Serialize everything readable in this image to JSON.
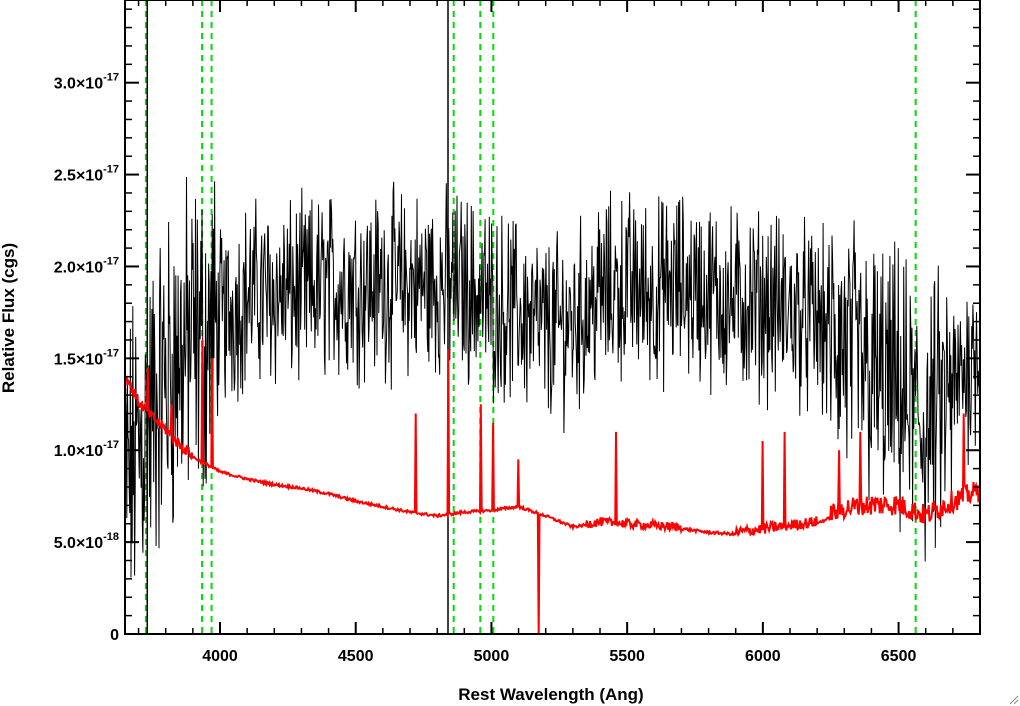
{
  "chart_data": {
    "type": "line",
    "xlabel": "Rest Wavelength (Ang)",
    "ylabel": "Relative Flux (cgs)",
    "xlim": [
      3650,
      6800
    ],
    "ylim": [
      0,
      3.45e-17
    ],
    "x_ticks": [
      {
        "value": 4000,
        "label": "4000"
      },
      {
        "value": 4500,
        "label": "4500"
      },
      {
        "value": 5000,
        "label": "5000"
      },
      {
        "value": 5500,
        "label": "5500"
      },
      {
        "value": 6000,
        "label": "6000"
      },
      {
        "value": 6500,
        "label": "6500"
      }
    ],
    "y_ticks": [
      {
        "value": 0,
        "mantissa": "0",
        "exponent": ""
      },
      {
        "value": 5e-18,
        "mantissa": "5.0×10",
        "exponent": "-18"
      },
      {
        "value": 1e-17,
        "mantissa": "1.0×10",
        "exponent": "-17"
      },
      {
        "value": 1.5e-17,
        "mantissa": "1.5×10",
        "exponent": "-17"
      },
      {
        "value": 2e-17,
        "mantissa": "2.0×10",
        "exponent": "-17"
      },
      {
        "value": 2.5e-17,
        "mantissa": "2.5×10",
        "exponent": "-17"
      },
      {
        "value": 3e-17,
        "mantissa": "3.0×10",
        "exponent": "-17"
      }
    ],
    "grid": false,
    "series": [
      {
        "color": "#000000",
        "style": "noisy observed spectrum",
        "x": [
          3650,
          3700,
          3750,
          3800,
          3850,
          3900,
          3950,
          4000,
          4100,
          4200,
          4300,
          4400,
          4500,
          4600,
          4700,
          4800,
          4900,
          5000,
          5100,
          5200,
          5300,
          5400,
          5500,
          5600,
          5700,
          5800,
          5900,
          6000,
          6100,
          6200,
          6300,
          6400,
          6500,
          6600,
          6700,
          6800
        ],
        "y": [
          8e-18,
          1e-17,
          1.2e-17,
          1.4e-17,
          1.5e-17,
          1.6e-17,
          1.6e-17,
          1.7e-17,
          1.85e-17,
          1.85e-17,
          1.85e-17,
          1.9e-17,
          1.9e-17,
          1.9e-17,
          1.9e-17,
          1.9e-17,
          1.9e-17,
          1.8e-17,
          1.75e-17,
          1.65e-17,
          1.7e-17,
          1.85e-17,
          1.9e-17,
          1.85e-17,
          1.9e-17,
          1.85e-17,
          1.8e-17,
          1.8e-17,
          1.75e-17,
          1.7e-17,
          1.55e-17,
          1.4e-17,
          1.3e-17,
          1.1e-17,
          1.3e-17,
          1.6e-17
        ],
        "noise_amplitude": 4e-18
      },
      {
        "color": "#ff0000",
        "style": "model continuum",
        "x": [
          3650,
          3700,
          3750,
          3800,
          3850,
          3900,
          3950,
          4000,
          4100,
          4200,
          4300,
          4400,
          4500,
          4600,
          4700,
          4800,
          4900,
          5000,
          5100,
          5200,
          5300,
          5400,
          5500,
          5600,
          5700,
          5800,
          5900,
          6000,
          6100,
          6200,
          6300,
          6400,
          6500,
          6600,
          6700,
          6800
        ],
        "y": [
          1.4e-17,
          1.25e-17,
          1.17e-17,
          1.1e-17,
          1.02e-17,
          9.6e-18,
          9.2e-18,
          8.8e-18,
          8.4e-18,
          8.1e-18,
          7.9e-18,
          7.6e-18,
          7.2e-18,
          6.9e-18,
          6.6e-18,
          6.4e-18,
          6.6e-18,
          6.7e-18,
          6.9e-18,
          6.4e-18,
          5.8e-18,
          6e-18,
          5.9e-18,
          5.8e-18,
          5.7e-18,
          5.5e-18,
          5.4e-18,
          5.6e-18,
          5.8e-18,
          6e-18,
          6.6e-18,
          6.8e-18,
          6.8e-18,
          6.2e-18,
          7e-18,
          7.6e-18
        ],
        "spikes": [
          {
            "x": 3735,
            "y": 1.45e-17
          },
          {
            "x": 3820,
            "y": 1.25e-17
          },
          {
            "x": 3935,
            "y": 1.6e-17
          },
          {
            "x": 3970,
            "y": 1.5e-17
          },
          {
            "x": 4720,
            "y": 1.2e-17
          },
          {
            "x": 4840,
            "y": 1.55e-17
          },
          {
            "x": 4960,
            "y": 1.25e-17
          },
          {
            "x": 5007,
            "y": 1.15e-17
          },
          {
            "x": 5100,
            "y": 9.5e-18
          },
          {
            "x": 5460,
            "y": 1.1e-17
          },
          {
            "x": 6000,
            "y": 1.05e-17
          },
          {
            "x": 6080,
            "y": 1.1e-17
          },
          {
            "x": 6280,
            "y": 1e-17
          },
          {
            "x": 6360,
            "y": 1.1e-17
          },
          {
            "x": 6740,
            "y": 1.2e-17
          }
        ],
        "dips": [
          {
            "x": 5175,
            "y": 0
          }
        ]
      }
    ],
    "vertical_lines": [
      {
        "x": 3727,
        "color": "#00dd00",
        "dash": true
      },
      {
        "x": 3934,
        "color": "#00dd00",
        "dash": true
      },
      {
        "x": 3969,
        "color": "#00dd00",
        "dash": true
      },
      {
        "x": 4861,
        "color": "#00dd00",
        "dash": true
      },
      {
        "x": 4959,
        "color": "#00dd00",
        "dash": true
      },
      {
        "x": 5007,
        "color": "#00dd00",
        "dash": true
      },
      {
        "x": 6563,
        "color": "#00dd00",
        "dash": true
      },
      {
        "x": 3732,
        "color": "#000000",
        "dash": false
      },
      {
        "x": 4840,
        "color": "#000000",
        "dash": false
      }
    ]
  }
}
